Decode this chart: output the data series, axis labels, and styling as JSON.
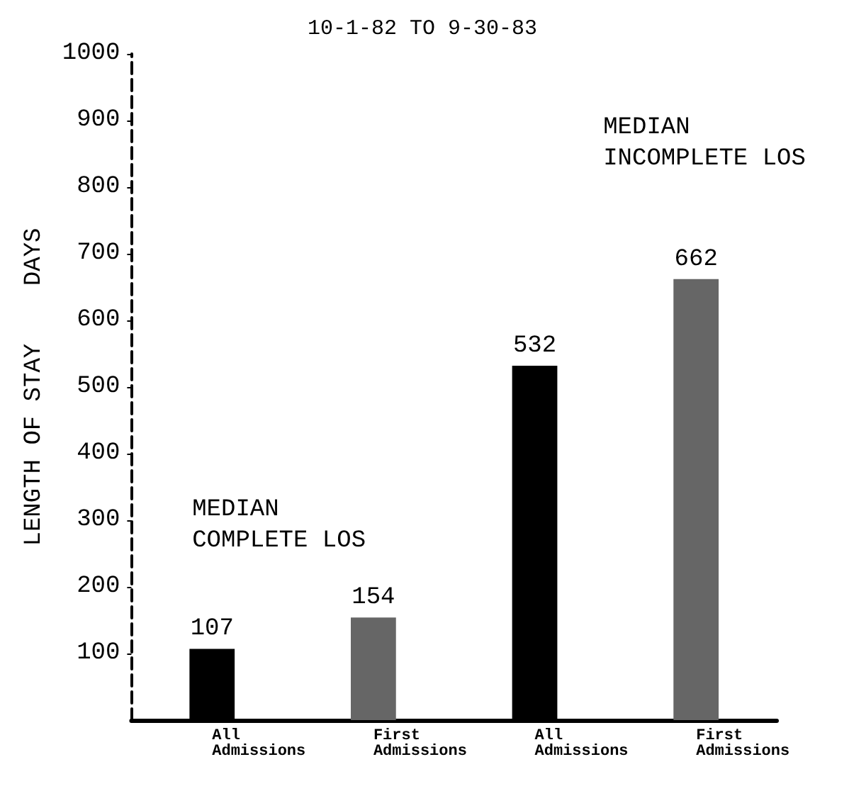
{
  "chart_data": {
    "type": "bar",
    "title": "10-1-82 TO 9-30-83",
    "ylabel": "LENGTH OF STAY    DAYS",
    "categories": [
      "All Admissions",
      "First Admissions",
      "All Admissions",
      "First Admissions"
    ],
    "values": [
      107,
      154,
      532,
      662
    ],
    "colors": [
      "#000000",
      "#666666",
      "#000000",
      "#666666"
    ],
    "ylim": [
      0,
      1000
    ],
    "yticks": [
      100,
      200,
      300,
      400,
      500,
      600,
      700,
      800,
      900,
      1000
    ],
    "data_labels": true,
    "grid": false,
    "annotations": [
      "MEDIAN\nCOMPLETE LOS",
      "MEDIAN\nINCOMPLETE LOS"
    ]
  }
}
